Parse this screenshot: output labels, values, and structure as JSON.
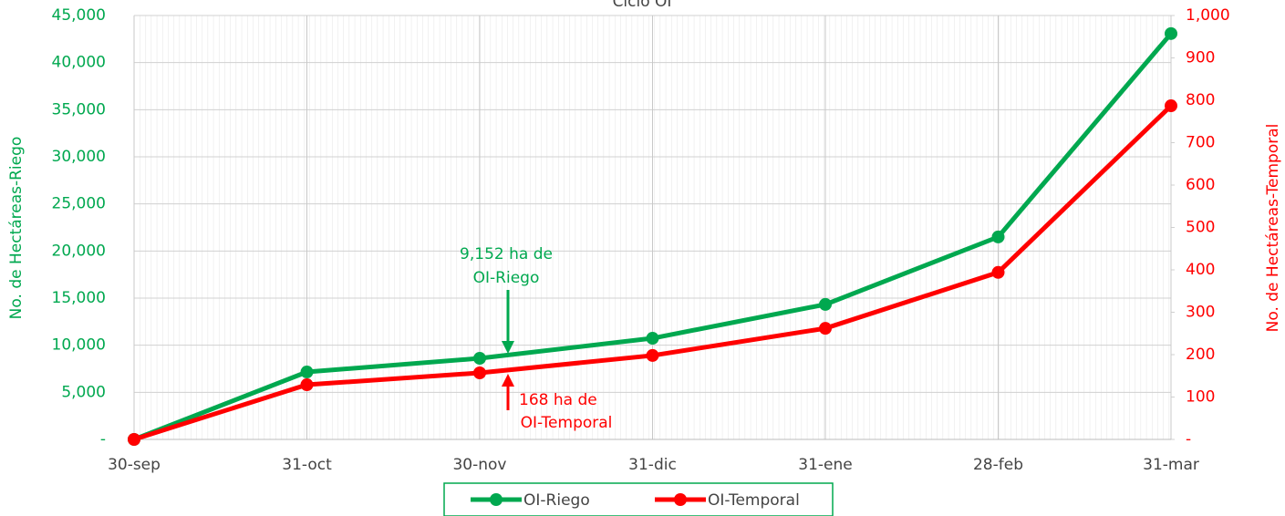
{
  "chart_data": {
    "type": "line",
    "title": "Ciclo OI",
    "categories": [
      "30-sep",
      "31-oct",
      "30-nov",
      "31-dic",
      "31-ene",
      "28-feb",
      "31-mar"
    ],
    "series": [
      {
        "name": "OI-Riego",
        "color": "#00a84f",
        "values": [
          0,
          7160,
          8610,
          10740,
          14330,
          21490,
          43080
        ]
      },
      {
        "name": "OI-Temporal",
        "color": "#ff0000",
        "axis": "y2",
        "values": [
          0,
          129,
          157,
          198,
          262,
          394,
          787
        ]
      }
    ],
    "ylabel": "No. de Hectáreas-Riego",
    "y2label": "No. de Hectáreas-Temporal",
    "ylim": [
      0,
      45000
    ],
    "yticks": [
      {
        "value": 0,
        "label": "-"
      },
      {
        "value": 5000,
        "label": "5,000"
      },
      {
        "value": 10000,
        "label": "10,000"
      },
      {
        "value": 15000,
        "label": "15,000"
      },
      {
        "value": 20000,
        "label": "20,000"
      },
      {
        "value": 25000,
        "label": "25,000"
      },
      {
        "value": 30000,
        "label": "30,000"
      },
      {
        "value": 35000,
        "label": "35,000"
      },
      {
        "value": 40000,
        "label": "40,000"
      },
      {
        "value": 45000,
        "label": "45,000"
      }
    ],
    "y2lim": [
      0,
      1000
    ],
    "y2ticks": [
      {
        "value": 0,
        "label": "-"
      },
      100,
      200,
      300,
      400,
      500,
      600,
      700,
      800,
      900,
      {
        "value": 1000,
        "label": "1,000"
      }
    ],
    "grid": true,
    "legend": "bottom",
    "annotations": [
      {
        "lines": [
          "9,152 ha de",
          "OI-Riego"
        ],
        "color": "#00a84f"
      },
      {
        "lines": [
          "168 ha de",
          "OI-Temporal"
        ],
        "color": "#ff0000"
      }
    ]
  }
}
